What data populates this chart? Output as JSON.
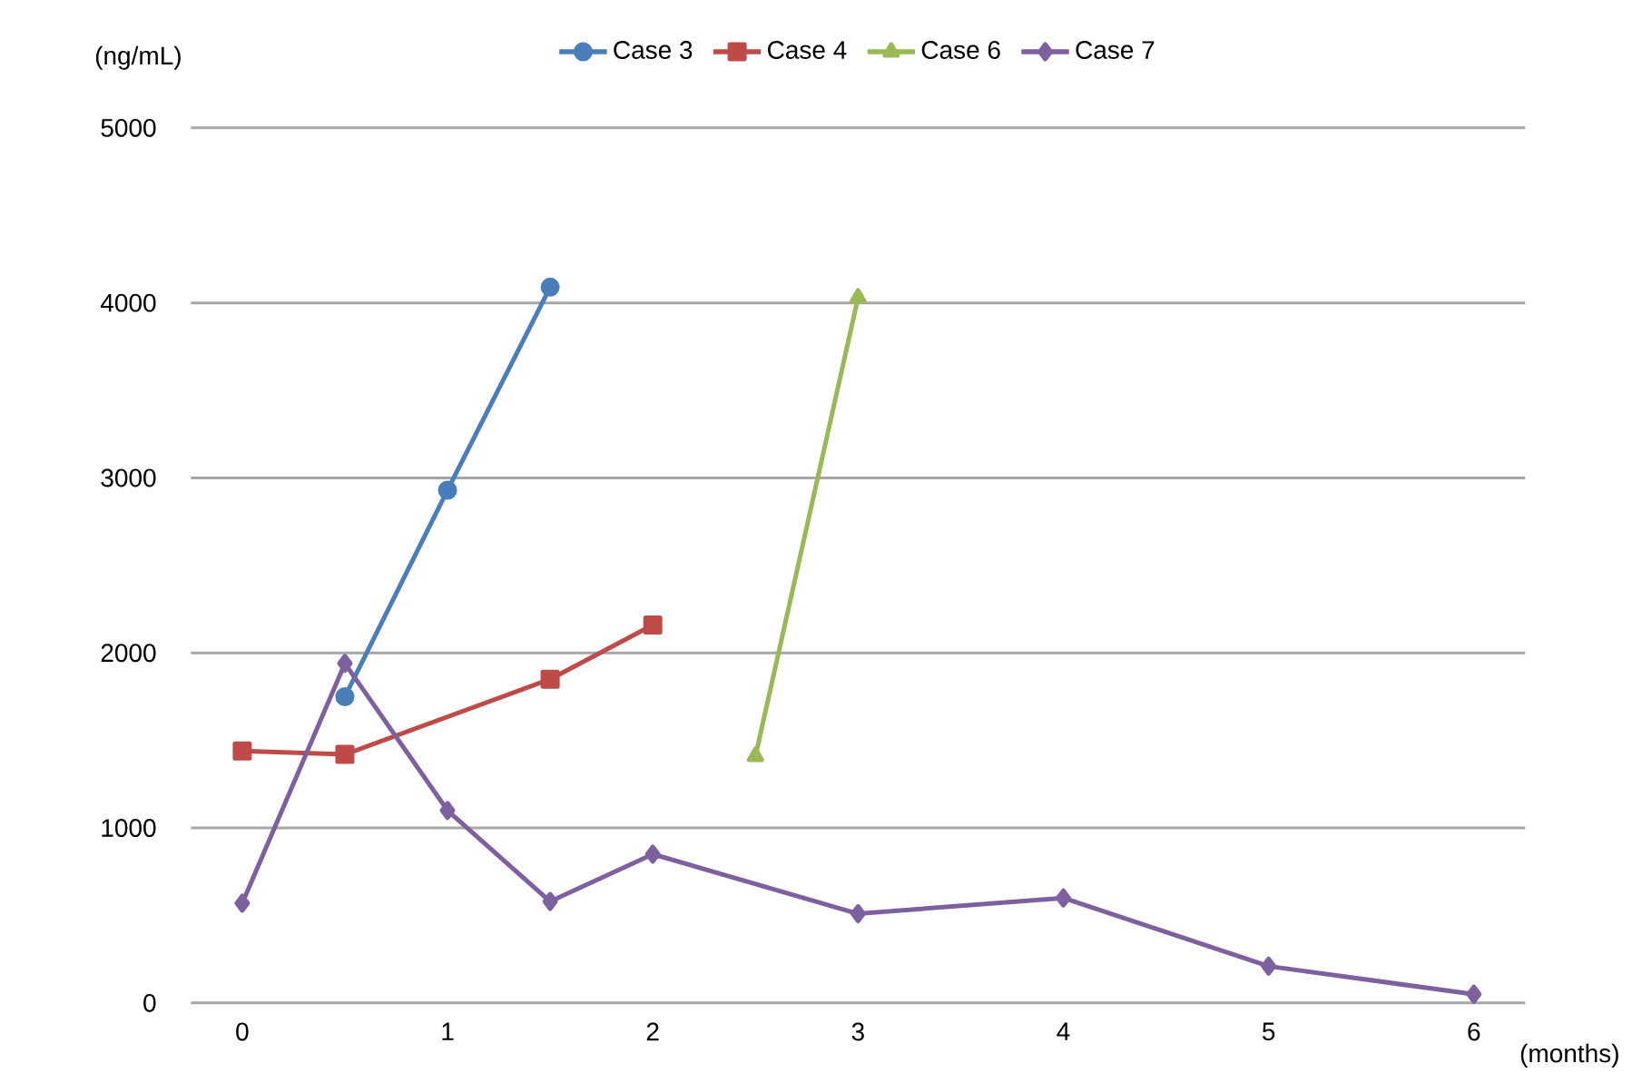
{
  "chart_data": {
    "type": "line",
    "ylabel": "(ng/mL)",
    "xlabel": "(months)",
    "xlim": [
      -0.25,
      6.25
    ],
    "xticks": [
      0,
      1,
      2,
      3,
      4,
      5,
      6
    ],
    "ylim": [
      0,
      5000
    ],
    "yticks": [
      0,
      1000,
      2000,
      3000,
      4000,
      5000
    ],
    "grid": "y",
    "legend": "top",
    "line_style": "solid",
    "series": [
      {
        "name": "Case 3",
        "color": "#4a7ebb",
        "marker": "circle",
        "x": [
          0.5,
          1,
          1.5
        ],
        "values": [
          1750,
          2930,
          4090
        ]
      },
      {
        "name": "Case 4",
        "color": "#be4b48",
        "marker": "square",
        "x": [
          0,
          0.5,
          1.5,
          2
        ],
        "values": [
          1440,
          1420,
          1850,
          2160
        ]
      },
      {
        "name": "Case 6",
        "color": "#98b954",
        "marker": "triangle",
        "x": [
          2.5,
          3
        ],
        "values": [
          1410,
          4030
        ]
      },
      {
        "name": "Case 7",
        "color": "#7d60a0",
        "marker": "diamond",
        "x": [
          0,
          0.5,
          1,
          1.5,
          2,
          3,
          4,
          5,
          6
        ],
        "values": [
          570,
          1940,
          1100,
          580,
          850,
          510,
          600,
          210,
          50
        ]
      }
    ]
  }
}
